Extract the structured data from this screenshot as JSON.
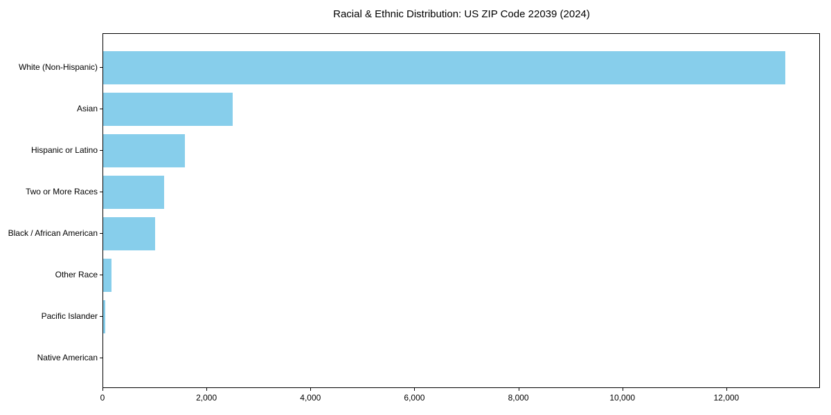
{
  "figure": {
    "title": "Racial & Ethnic Distribution: US ZIP Code 22039 (2024)"
  },
  "chart_data": {
    "type": "bar",
    "orientation": "horizontal",
    "title": "Racial & Ethnic Distribution: US ZIP Code 22039 (2024)",
    "categories": [
      "White (Non-Hispanic)",
      "Asian",
      "Hispanic or Latino",
      "Two or More Races",
      "Black / African American",
      "Other Race",
      "Pacific Islander",
      "Native American"
    ],
    "values": [
      13150,
      2500,
      1580,
      1180,
      1000,
      155,
      40,
      0
    ],
    "xlabel": "",
    "ylabel": "",
    "xlim": [
      0,
      13800
    ],
    "xticks": [
      0,
      2000,
      4000,
      6000,
      8000,
      10000,
      12000
    ],
    "xtick_labels": [
      "0",
      "2,000",
      "4,000",
      "6,000",
      "8,000",
      "10,000",
      "12,000"
    ],
    "bar_color": "#87CEEB",
    "spine_color": "#000000",
    "background_color": "#ffffff",
    "grid": false,
    "legend_position": "none",
    "sort": "descending-top-to-bottom"
  }
}
